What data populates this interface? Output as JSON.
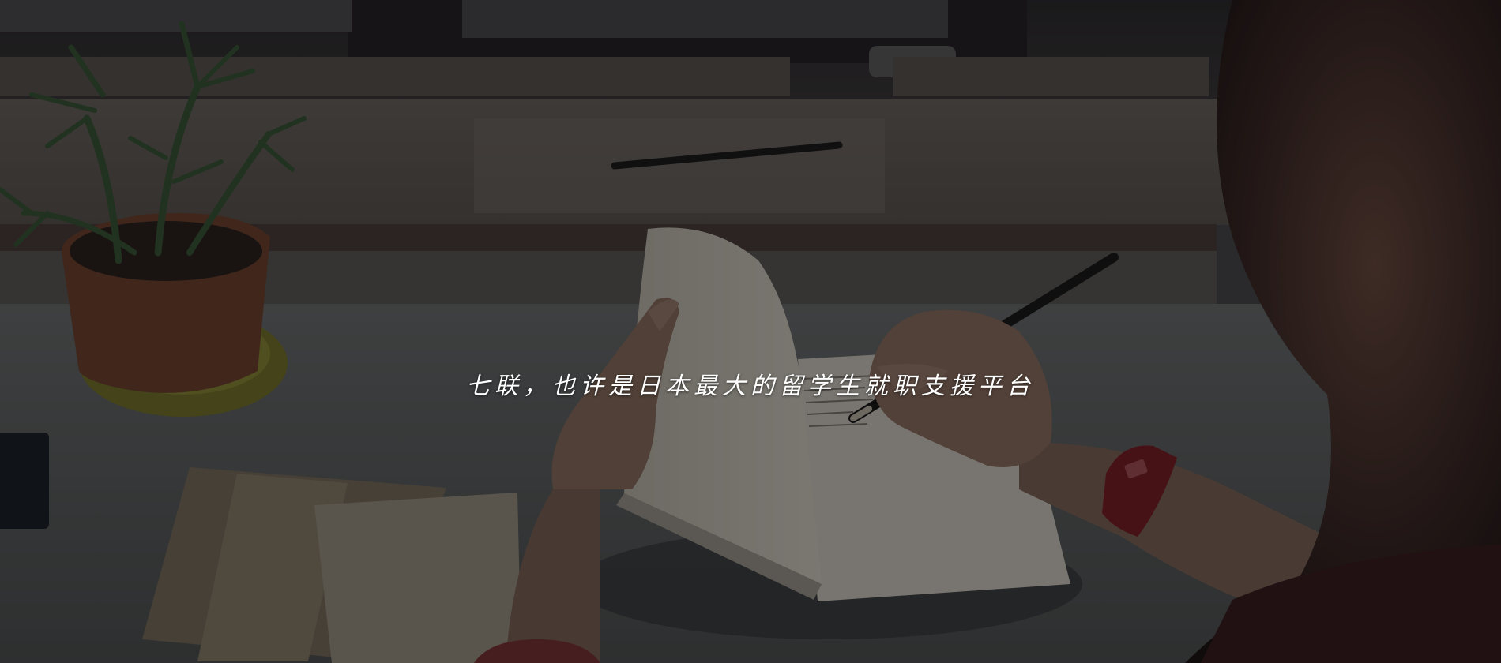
{
  "hero": {
    "tagline": "七联，也许是日本最大的留学生就职支援平台"
  },
  "photo": {
    "subject": "person-writing-in-notebook-at-desk",
    "colors": {
      "wall": "#3e3b3d",
      "windowsill": "#6d6662",
      "sill_shadow": "#4a3e3b",
      "desk": "#5a5d5e",
      "notebook": "#c8c2b8",
      "envelope": "#8a7e6e",
      "pot": "#7a4a32",
      "saucer": "#7a7a2e",
      "plant": "#3c5a3a",
      "skin": "#8a6e60",
      "watch": "#7a1e24",
      "pencil": "#1e1e1e",
      "person_blur": "#3a2a28"
    }
  }
}
